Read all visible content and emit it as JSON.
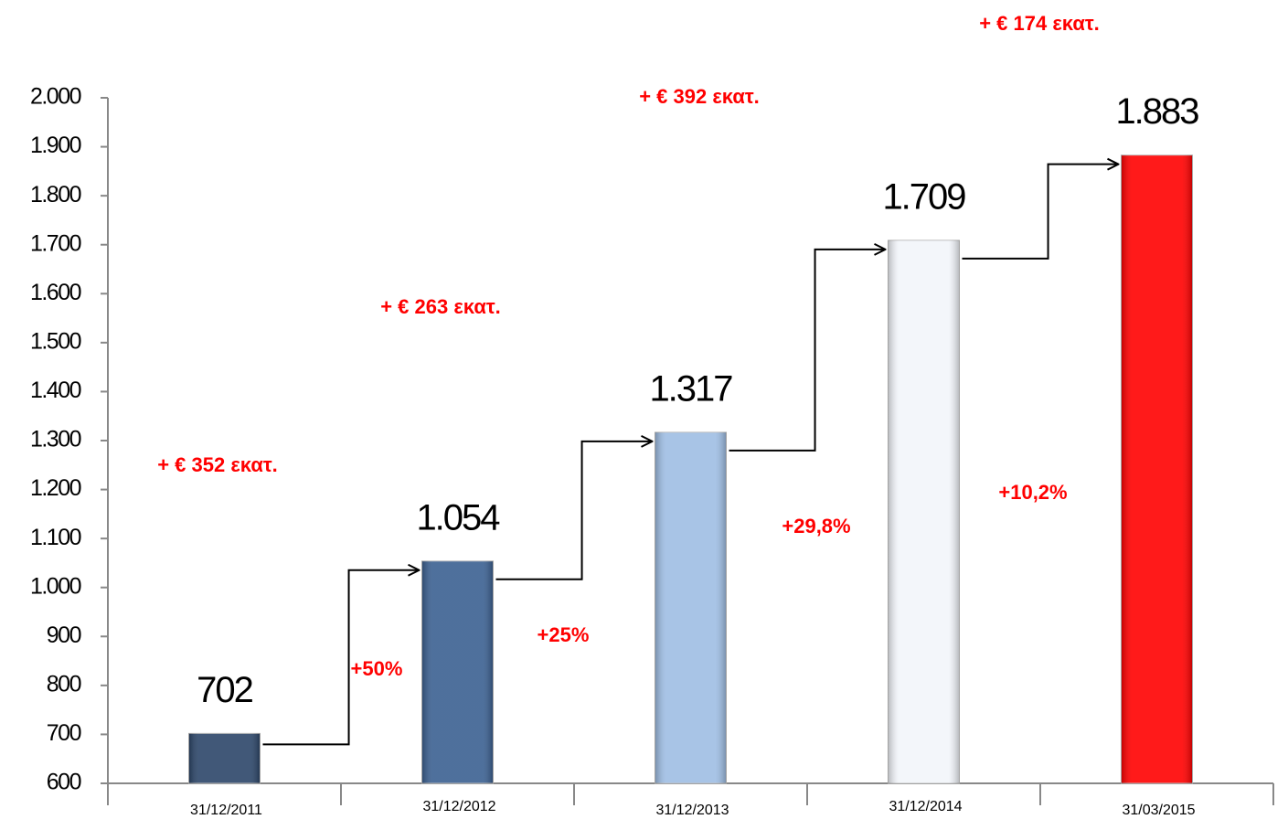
{
  "chart_data": {
    "type": "bar",
    "categories": [
      "31/12/2011",
      "31/12/2012",
      "31/12/2013",
      "31/12/2014",
      "31/03/2015"
    ],
    "values": [
      702,
      1054,
      1317,
      1709,
      1883
    ],
    "value_labels": [
      "702",
      "1.054",
      "1.317",
      "1.709",
      "1.883"
    ],
    "colors": [
      "#2c4669",
      "#3b6091",
      "#9ebde3",
      "#f2f5fa",
      "#ff0000"
    ],
    "ylim": [
      600,
      2000
    ],
    "yticks": [
      600,
      700,
      800,
      900,
      {
        "value": 1000,
        "label": "1.000"
      },
      {
        "value": 1100,
        "label": "1.100"
      },
      {
        "value": 1200,
        "label": "1.200"
      },
      {
        "value": 1300,
        "label": "1.300"
      },
      {
        "value": 1400,
        "label": "1.400"
      },
      {
        "value": 1500,
        "label": "1.500"
      },
      {
        "value": 1600,
        "label": "1.600"
      },
      {
        "value": 1700,
        "label": "1.700"
      },
      {
        "value": 1800,
        "label": "1.800"
      },
      {
        "value": 1900,
        "label": "1.900"
      },
      {
        "value": 2000,
        "label": "2.000"
      }
    ],
    "annotations": [
      "+ € 352 εκατ.",
      "+ € 263 εκατ.",
      "+ € 392 εκατ.",
      "+ € 174 εκατ.",
      "+50%",
      "+25%",
      "+29,8%",
      "+10,2%"
    ]
  }
}
